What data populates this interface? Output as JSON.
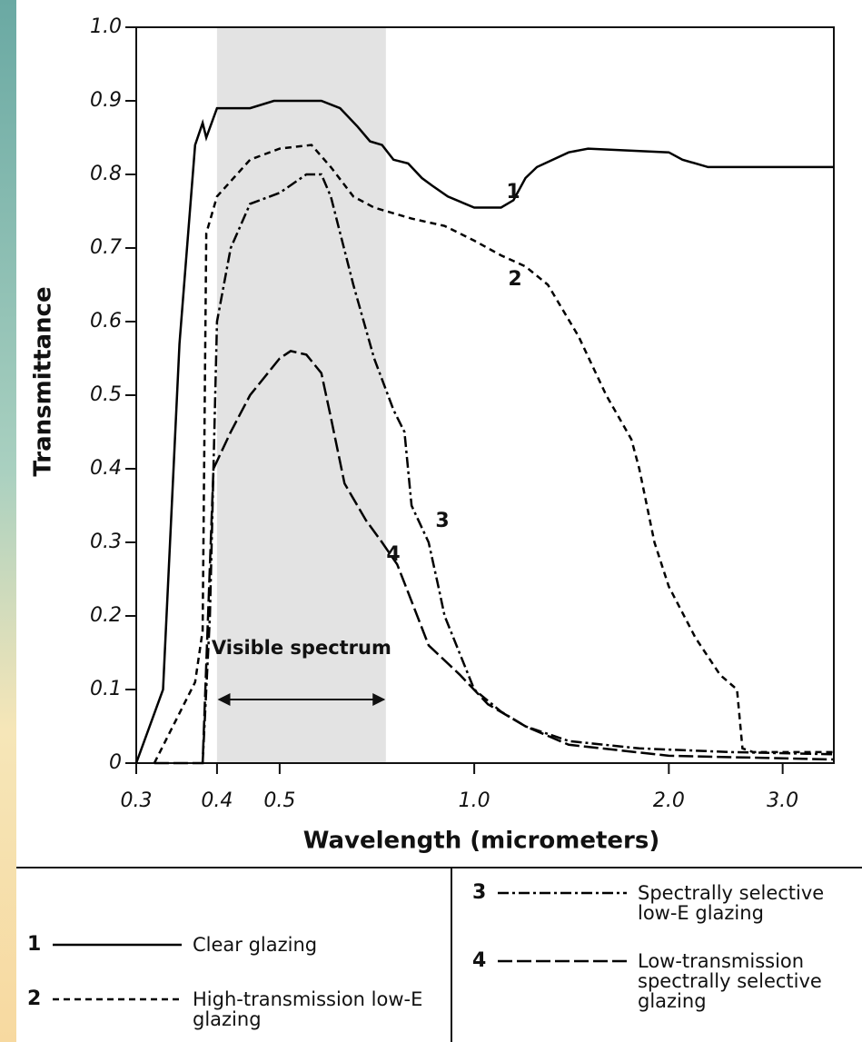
{
  "chart_data": {
    "type": "line",
    "x_label": "Wavelength (micrometers)",
    "y_label": "Transmittance",
    "annotation": "Visible spectrum",
    "visible_span": [
      0.4,
      0.73
    ],
    "xscale": "log",
    "xlim": [
      0.3,
      3.6
    ],
    "xticks": [
      0.3,
      0.4,
      0.5,
      {
        "value": 1,
        "label": "1.0"
      },
      {
        "value": 2,
        "label": "2.0"
      },
      {
        "value": 3,
        "label": "3.0"
      }
    ],
    "ylim": [
      0,
      1
    ],
    "yticks": [
      0,
      0.1,
      0.2,
      0.3,
      0.4,
      0.5,
      0.6,
      0.7,
      0.8,
      0.9,
      {
        "value": 1,
        "label": "1.0"
      }
    ],
    "series": [
      {
        "label": "1",
        "name": "Clear glazing",
        "color": "#000000",
        "dash": "none",
        "x": [
          0.3,
          0.33,
          0.35,
          0.37,
          0.38,
          0.385,
          0.4,
          0.45,
          0.49,
          0.58,
          0.62,
          0.66,
          0.69,
          0.72,
          0.75,
          0.79,
          0.83,
          0.86,
          0.91,
          1.0,
          1.1,
          1.15,
          1.2,
          1.25,
          1.4,
          1.5,
          2.0,
          2.1,
          2.3,
          2.5,
          3.6
        ],
        "values": [
          0,
          0.1,
          0.57,
          0.84,
          0.87,
          0.85,
          0.89,
          0.89,
          0.9,
          0.9,
          0.89,
          0.865,
          0.845,
          0.84,
          0.82,
          0.815,
          0.795,
          0.785,
          0.77,
          0.755,
          0.755,
          0.765,
          0.795,
          0.81,
          0.83,
          0.835,
          0.83,
          0.82,
          0.81,
          0.81,
          0.81
        ]
      },
      {
        "label": "2",
        "name": "High-transmission low-E glazing",
        "color": "#000000",
        "dash": "7 5",
        "x": [
          0.32,
          0.37,
          0.38,
          0.385,
          0.4,
          0.45,
          0.5,
          0.56,
          0.6,
          0.65,
          0.7,
          0.8,
          0.9,
          1.0,
          1.1,
          1.2,
          1.3,
          1.45,
          1.6,
          1.75,
          1.8,
          1.9,
          2.0,
          2.2,
          2.4,
          2.55,
          2.6,
          2.7,
          3.6
        ],
        "values": [
          0,
          0.11,
          0.18,
          0.72,
          0.77,
          0.82,
          0.835,
          0.84,
          0.81,
          0.77,
          0.755,
          0.74,
          0.73,
          0.71,
          0.69,
          0.675,
          0.65,
          0.58,
          0.5,
          0.44,
          0.4,
          0.3,
          0.24,
          0.17,
          0.12,
          0.1,
          0.02,
          0.015,
          0.015
        ]
      },
      {
        "label": "3",
        "name": "Spectrally selective low-E glazing",
        "color": "#000000",
        "dash": "12 4 3 4",
        "x": [
          0.38,
          0.39,
          0.4,
          0.42,
          0.45,
          0.5,
          0.55,
          0.58,
          0.6,
          0.65,
          0.7,
          0.75,
          0.78,
          0.8,
          0.85,
          0.88,
          0.9,
          1.0,
          1.1,
          1.2,
          1.4,
          1.8,
          2.5,
          3.6
        ],
        "values": [
          0,
          0.2,
          0.6,
          0.7,
          0.76,
          0.775,
          0.8,
          0.8,
          0.77,
          0.65,
          0.55,
          0.48,
          0.45,
          0.35,
          0.3,
          0.24,
          0.2,
          0.1,
          0.07,
          0.05,
          0.03,
          0.02,
          0.015,
          0.012
        ]
      },
      {
        "label": "4",
        "name": "Low-transmission spectrally selective glazing",
        "color": "#000000",
        "dash": "16 5",
        "x": [
          0.32,
          0.38,
          0.395,
          0.42,
          0.45,
          0.5,
          0.52,
          0.55,
          0.58,
          0.6,
          0.63,
          0.68,
          0.72,
          0.76,
          0.8,
          0.85,
          0.95,
          1.05,
          1.2,
          1.4,
          2.0,
          3.6
        ],
        "values": [
          0,
          0,
          0.4,
          0.45,
          0.5,
          0.55,
          0.56,
          0.555,
          0.53,
          0.47,
          0.38,
          0.33,
          0.3,
          0.27,
          0.22,
          0.16,
          0.12,
          0.08,
          0.05,
          0.025,
          0.01,
          0.005
        ]
      }
    ]
  }
}
